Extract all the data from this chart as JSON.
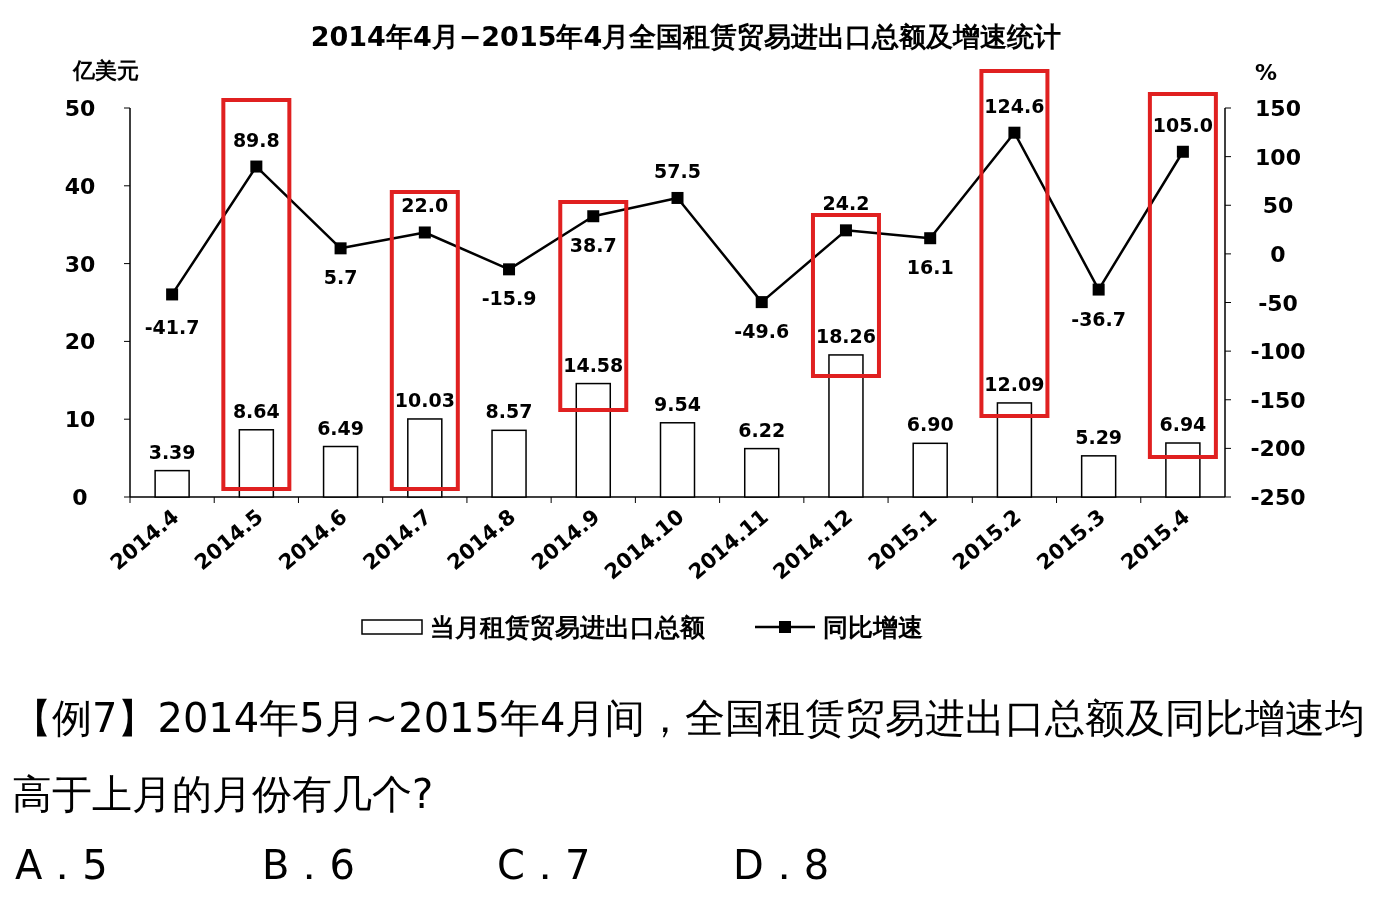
{
  "chart_data": {
    "type": "bar",
    "title": "2014年4月−2015年4月全国租赁贸易进出口总额及增速统计",
    "ylabel": "亿美元",
    "y2label": "%",
    "categories": [
      "2014.4",
      "2014.5",
      "2014.6",
      "2014.7",
      "2014.8",
      "2014.9",
      "2014.10",
      "2014.11",
      "2014.12",
      "2015.1",
      "2015.2",
      "2015.3",
      "2015.4"
    ],
    "series": [
      {
        "name": "当月租赁贸易进出口总额",
        "color": "#ffffff",
        "values": [
          3.39,
          8.64,
          6.49,
          10.03,
          8.57,
          14.58,
          9.54,
          6.22,
          18.26,
          6.9,
          12.09,
          5.29,
          6.94
        ],
        "value_labels": [
          "3.39",
          "8.64",
          "6.49",
          "10.03",
          "8.57",
          "14.58",
          "9.54",
          "6.22",
          "18.26",
          "6.90",
          "12.09",
          "5.29",
          "6.94"
        ]
      },
      {
        "name": "同比增速",
        "type": "line",
        "axis": "y2",
        "color": "#000000",
        "marker": "square",
        "values": [
          -41.7,
          89.8,
          5.7,
          22.0,
          -15.9,
          38.7,
          57.5,
          -49.6,
          24.2,
          16.1,
          124.6,
          -36.7,
          105.0
        ],
        "value_labels": [
          "-41.7",
          "89.8",
          "5.7",
          "22.0",
          "-15.9",
          "38.7",
          "57.5",
          "-49.6",
          "24.2",
          "16.1",
          "124.6",
          "-36.7",
          "105.0"
        ]
      }
    ],
    "ylim": [
      0,
      50
    ],
    "yticks": [
      0,
      10,
      20,
      30,
      40,
      50
    ],
    "y2lim": [
      -250,
      150
    ],
    "y2ticks": [
      -250,
      -200,
      -150,
      -100,
      -50,
      0,
      50,
      100,
      150
    ],
    "legend": "bottom",
    "grid": false,
    "annotations": [
      "【例7】2014年5月~2015年4月间，全国租赁贸易进出口总额及同比增速均高于上月的月份有几个?",
      "A．5",
      "B．6",
      "C．7",
      "D．8"
    ]
  }
}
